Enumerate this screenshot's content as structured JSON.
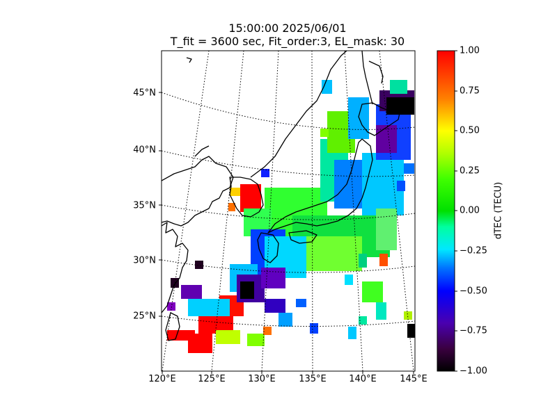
{
  "title": {
    "line1": "15:00:00 2025/06/01",
    "line2": "T_fit = 3600 sec, Fit_order:3, EL_mask: 30"
  },
  "axes": {
    "lon_ticks": [
      "120°E",
      "125°E",
      "130°E",
      "135°E",
      "140°E",
      "145°E"
    ],
    "lat_ticks": [
      "25°N",
      "30°N",
      "35°N",
      "40°N",
      "45°N"
    ]
  },
  "colorbar": {
    "label": "dTEC (TECU)",
    "ticks": [
      "1.00",
      "0.75",
      "0.50",
      "0.25",
      "0.00",
      "−0.25",
      "−0.50",
      "−0.75",
      "−1.00"
    ],
    "colormap": "gist_ncar-like",
    "range": [
      -1.0,
      1.0
    ]
  },
  "map": {
    "projection": "polar stereographic",
    "extent": {
      "lon": [
        120,
        145
      ],
      "lat": [
        20,
        48
      ]
    },
    "graticule": "dotted",
    "coastline_color": "#000000"
  }
}
